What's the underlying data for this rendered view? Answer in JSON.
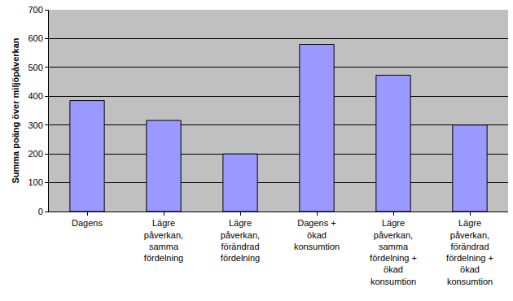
{
  "chart_data": {
    "type": "bar",
    "y_label": "Summa poäng över miljöpåverkan",
    "categories": [
      "Dagens",
      "Lägre påverkan, samma fördelning",
      "Lägre påverkan, förändrad fördelning",
      "Dagens + ökad konsumtion",
      "Lägre påverkan, samma fördelning + ökad konsumtion",
      "Lägre påverkan, förändrad fördelning + ökad konsumtion"
    ],
    "values": [
      385,
      316,
      200,
      580,
      473,
      300
    ],
    "color": "#9999ff",
    "ylim": [
      0,
      700
    ],
    "yticks": [
      0,
      100,
      200,
      300,
      400,
      500,
      600,
      700
    ],
    "grid": true
  }
}
